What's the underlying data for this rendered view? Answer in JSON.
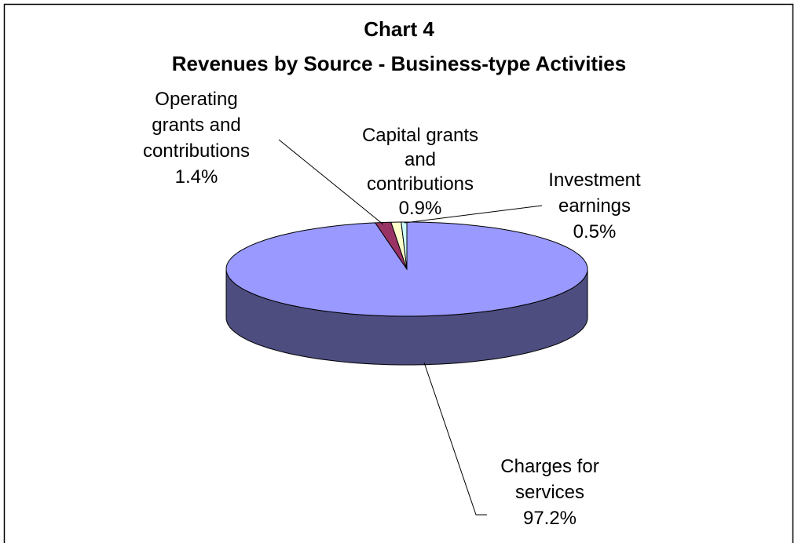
{
  "chart_data": {
    "type": "pie",
    "title": "Chart 4",
    "subtitle": "Revenues by Source - Business-type Activities",
    "categories": [
      "Charges for services",
      "Operating grants and contributions",
      "Capital grants and contributions",
      "Investment earnings"
    ],
    "values": [
      97.2,
      1.4,
      0.9,
      0.5
    ],
    "value_labels": [
      "97.2%",
      "1.4%",
      "0.9%",
      "0.5%"
    ],
    "colors": [
      "#9999ff",
      "#993366",
      "#ffffcc",
      "#ccffff"
    ]
  }
}
